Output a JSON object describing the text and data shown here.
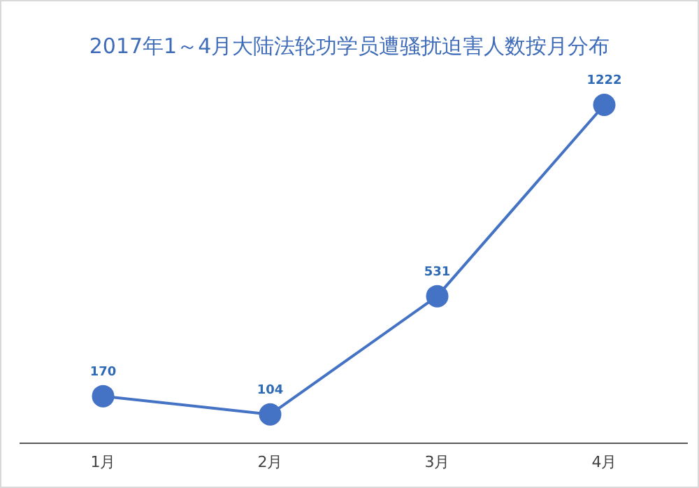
{
  "chart_data": {
    "type": "line",
    "title": "2017年1～4月大陆法轮功学员遭骚扰迫害人数按月分布",
    "categories": [
      "1月",
      "2月",
      "3月",
      "4月"
    ],
    "series": [
      {
        "color": "#4472c4",
        "values": [
          170,
          104,
          531,
          1222
        ]
      }
    ],
    "data_labels": true,
    "marker": "circle"
  }
}
